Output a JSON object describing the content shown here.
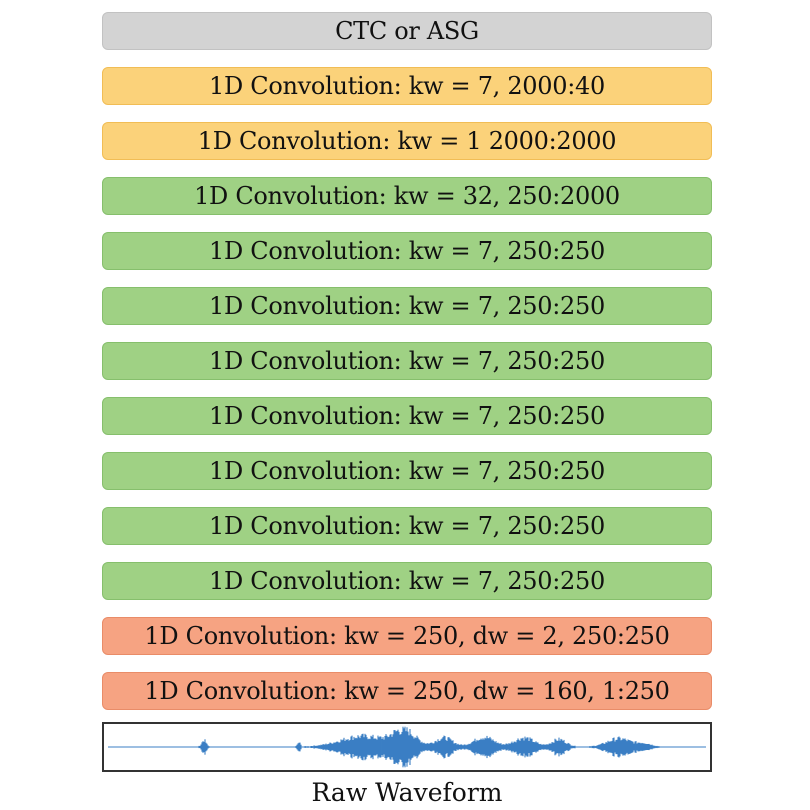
{
  "layers": [
    {
      "label": "CTC or ASG",
      "color": "gray"
    },
    {
      "label": "1D Convolution: kw = 7, 2000:40",
      "color": "orange"
    },
    {
      "label": "1D Convolution: kw = 1 2000:2000",
      "color": "orange"
    },
    {
      "label": "1D Convolution: kw = 32, 250:2000",
      "color": "green"
    },
    {
      "label": "1D Convolution: kw = 7, 250:250",
      "color": "green"
    },
    {
      "label": "1D Convolution: kw = 7, 250:250",
      "color": "green"
    },
    {
      "label": "1D Convolution: kw = 7, 250:250",
      "color": "green"
    },
    {
      "label": "1D Convolution: kw = 7, 250:250",
      "color": "green"
    },
    {
      "label": "1D Convolution: kw = 7, 250:250",
      "color": "green"
    },
    {
      "label": "1D Convolution: kw = 7, 250:250",
      "color": "green"
    },
    {
      "label": "1D Convolution: kw = 7, 250:250",
      "color": "green"
    },
    {
      "label": "1D Convolution: kw = 250, dw = 2, 250:250",
      "color": "red"
    },
    {
      "label": "1D Convolution: kw = 250, dw = 160, 1:250",
      "color": "red"
    }
  ],
  "waveform": {
    "label": "Raw Waveform",
    "color": "#3b7fc4"
  },
  "colors": {
    "gray": "#d3d3d3",
    "orange": "#fbd27a",
    "green": "#9fd184",
    "red": "#f6a382"
  }
}
